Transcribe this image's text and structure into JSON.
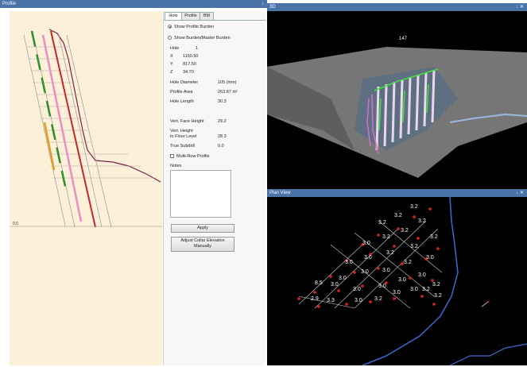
{
  "profile_panel": {
    "title": "Profile",
    "pin": "↓",
    "axis_label": "0.0"
  },
  "tabs": [
    "Hole",
    "Profile",
    "BM"
  ],
  "hole_tab": {
    "show_profile_burden": "Show Profile Burden",
    "show_burden_master": "Show Burden/Master Burden",
    "hole_label": "Hole",
    "hole_value": "1",
    "x_label": "X",
    "x_value": "1150.50",
    "y_label": "Y",
    "y_value": "817.50",
    "z_label": "Z",
    "z_value": "34.70",
    "diameter_label": "Hole Diameter",
    "diameter_value": "105 (mm)",
    "area_label": "Profile Area",
    "area_value": "263.87 m²",
    "length_label": "Hole Length",
    "length_value": "30.3",
    "face_label": "Vert. Face Height",
    "face_value": "29.2",
    "floor_label1": "Vert. Height",
    "floor_label2": "to Floor Level",
    "floor_value": "28.3",
    "subdrill_label": "True Subdrill",
    "subdrill_value": "0.0",
    "multirow_label": "Multi-Row Profile",
    "notes_label": "Notes",
    "apply_label": "Apply",
    "adjust_label1": "Adjust Collar Elevation",
    "adjust_label2": "Manually"
  },
  "view3d": {
    "title": "3D",
    "ctrl": "↓ ✕",
    "label": "147"
  },
  "plan_view": {
    "title": "Plan View",
    "ctrl": "↓ ✕",
    "labels": [
      "3.2",
      "3.2",
      "3.2",
      "3.2",
      "3.2",
      "3.2",
      "3.2",
      "3.0",
      "3.2",
      "3.2",
      "3.0",
      "3.0",
      "3.0",
      "3.2",
      "3.0",
      "3.0",
      "3.0",
      "3.0",
      "3.0",
      "3.2",
      "8.5",
      "3.0",
      "3.0",
      "3.0",
      "3.0",
      "3.0",
      "3.2",
      "2.9",
      "3.3",
      "3.0",
      "3.2",
      "3.2"
    ]
  },
  "colors": {
    "title_bar": "#4a73a8",
    "canvas": "#fdf0d9",
    "hole_red": "#c0282a",
    "hole_pink": "#e88ec4",
    "hole_green": "#2f8f2f",
    "hole_orange": "#e0a020"
  }
}
